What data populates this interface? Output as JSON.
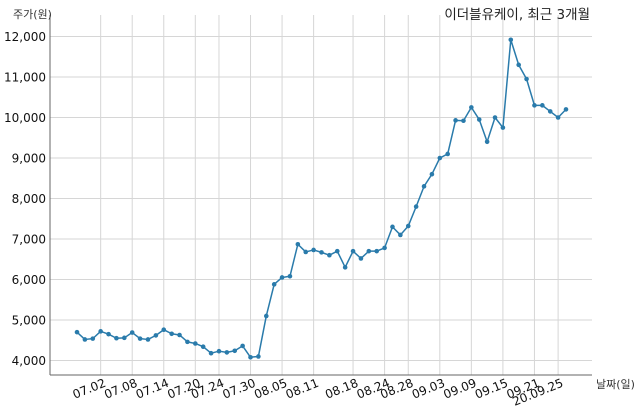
{
  "chart_data": {
    "type": "line",
    "title": "이더블유케이, 최근 3개월",
    "ylabel": "주가(원)",
    "xlabel": "날짜(일)",
    "ylim": [
      3700,
      12350
    ],
    "y_ticks": [
      4000,
      5000,
      6000,
      7000,
      8000,
      9000,
      10000,
      11000,
      12000
    ],
    "y_tick_labels": [
      "4,000",
      "5,000",
      "6,000",
      "7,000",
      "8,000",
      "9,000",
      "10,000",
      "11,000",
      "12,000"
    ],
    "x_tick_labels": [
      "07.02",
      "07.08",
      "07.14",
      "07.20",
      "07.24",
      "07.30",
      "08.05",
      "08.11",
      "08.18",
      "08.24",
      "08.28",
      "09.03",
      "09.09",
      "09.15",
      "09.21",
      "20.09.25"
    ],
    "x_tick_index": [
      3,
      7,
      11,
      15,
      18,
      22,
      26,
      30,
      35,
      39,
      42,
      46,
      50,
      54,
      58,
      61
    ],
    "line_color": "#2a7bab",
    "grid": true,
    "series": [
      {
        "values": [
          4700,
          4520,
          4540,
          4720,
          4650,
          4550,
          4560,
          4690,
          4540,
          4520,
          4620,
          4760,
          4660,
          4630,
          4460,
          4420,
          4340,
          4180,
          4230,
          4200,
          4240,
          4360,
          4080,
          4100,
          5100,
          5880,
          6050,
          6080,
          6870,
          6680,
          6730,
          6670,
          6600,
          6700,
          6300,
          6700,
          6520,
          6700,
          6700,
          6780,
          7300,
          7100,
          7320,
          7800,
          8300,
          8600,
          9000,
          9100,
          9930,
          9920,
          10250,
          9950,
          9400,
          10000,
          9750,
          11920,
          11300,
          10950,
          10300,
          10300,
          10150,
          10000,
          10200
        ]
      }
    ]
  }
}
